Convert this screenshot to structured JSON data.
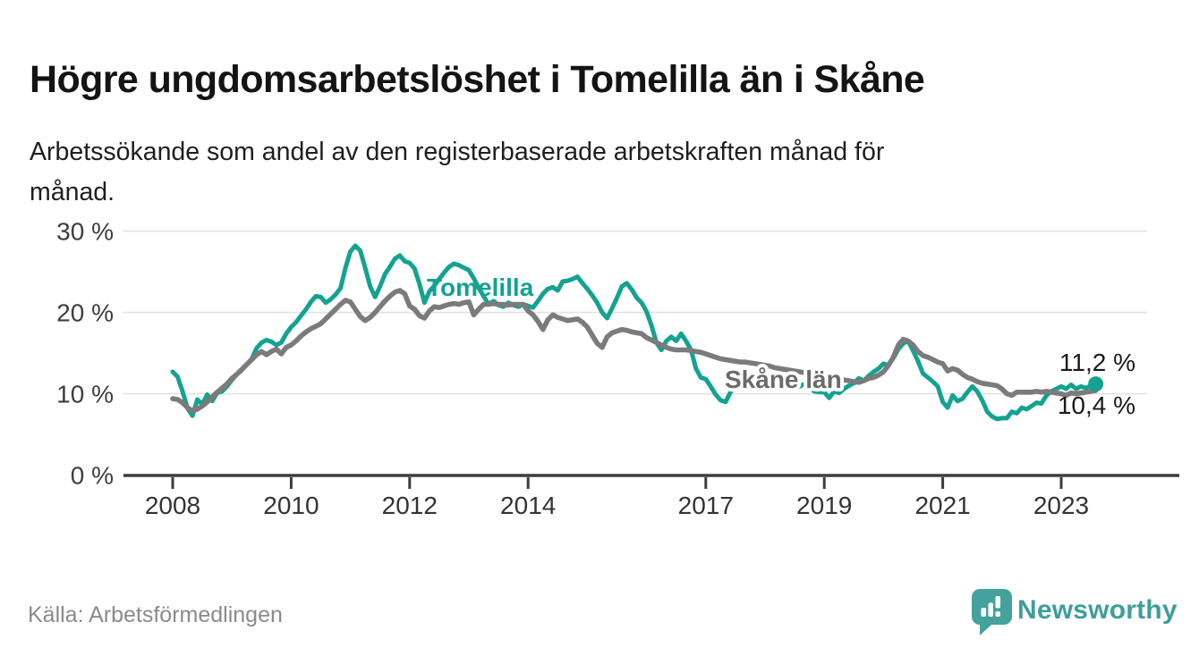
{
  "header": {
    "title": "Högre ungdomsarbetslöshet i Tomelilla än i Skåne",
    "subtitle": "Arbetssökande som andel av den registerbaserade arbetskraften månad för månad.",
    "subtitle_lines": [
      "Arbetssökande som andel av den registerbaserade arbetskraften månad för",
      "månad."
    ]
  },
  "footer": {
    "source": "Källa: Arbetsförmedlingen",
    "brand": "Newsworthy"
  },
  "colors": {
    "tomelilla": "#14a291",
    "skane": "#7b7b7b",
    "skane_label": "#6b6b6b",
    "grid": "#e2e2e2",
    "axis": "#3d3d3d",
    "end_label_text": "#1a1a1a",
    "brand_teal": "#3e9e9a"
  },
  "chart_data": {
    "type": "line",
    "unit": "%",
    "frequency": "monthly",
    "x_start": "2008-01",
    "x_end": "2023-08",
    "x_tick_years": [
      2008,
      2010,
      2012,
      2014,
      2017,
      2019,
      2021,
      2023
    ],
    "x_tick_labels": [
      "2008",
      "2010",
      "2012",
      "2014",
      "2017",
      "2019",
      "2021",
      "2023"
    ],
    "y_ticks": [
      0,
      10,
      20,
      30
    ],
    "y_tick_labels": [
      "0 %",
      "10 %",
      "20 %",
      "30 %"
    ],
    "ylim": [
      0,
      32
    ],
    "grid": true,
    "legend_position": "inline-labels",
    "series": [
      {
        "name": "Tomelilla",
        "color": "#14a291",
        "end_label": "11,2 %",
        "end_value": 11.2,
        "values": [
          12.7,
          12.1,
          10.3,
          8.2,
          7.3,
          9.3,
          8.7,
          9.9,
          9.1,
          10.1,
          10.3,
          10.9,
          11.7,
          12.4,
          12.9,
          13.6,
          14.3,
          15.6,
          16.3,
          16.6,
          16.4,
          16.0,
          16.3,
          17.4,
          18.2,
          18.8,
          19.6,
          20.4,
          21.3,
          22.0,
          21.9,
          21.2,
          21.6,
          22.2,
          23.0,
          25.5,
          27.5,
          28.2,
          27.6,
          25.5,
          23.2,
          21.9,
          23.2,
          24.7,
          25.6,
          26.6,
          27.0,
          26.3,
          26.1,
          25.4,
          23.5,
          21.2,
          22.6,
          23.3,
          24.1,
          24.9,
          25.6,
          26.0,
          25.8,
          25.5,
          25.2,
          24.2,
          23.0,
          22.0,
          21.0,
          21.4,
          20.9,
          20.7,
          21.2,
          20.9,
          20.7,
          21.0,
          20.8,
          20.6,
          21.4,
          22.3,
          22.9,
          23.1,
          22.7,
          23.8,
          23.9,
          24.1,
          24.4,
          23.6,
          22.9,
          22.1,
          21.2,
          20.0,
          19.3,
          20.5,
          21.8,
          23.2,
          23.6,
          22.8,
          21.8,
          21.2,
          20.1,
          18.4,
          16.3,
          15.4,
          16.5,
          17.0,
          16.5,
          17.4,
          16.5,
          15.4,
          13.1,
          12.0,
          11.8,
          10.9,
          9.9,
          9.2,
          9.0,
          10.2,
          11.1,
          10.7,
          11.3,
          11.6,
          11.4,
          11.1,
          11.3,
          11.0,
          10.8,
          11.0,
          11.4,
          11.1,
          10.7,
          10.9,
          11.2,
          10.8,
          10.3,
          10.2,
          10.2,
          9.5,
          10.3,
          10.1,
          10.6,
          11.0,
          11.3,
          11.9,
          11.6,
          12.2,
          12.7,
          13.1,
          13.7,
          13.5,
          14.4,
          15.5,
          16.2,
          16.5,
          15.3,
          14.0,
          12.5,
          12.0,
          11.5,
          10.9,
          9.0,
          8.3,
          9.8,
          9.1,
          9.4,
          10.2,
          10.9,
          10.3,
          9.2,
          7.8,
          7.2,
          6.9,
          7.0,
          7.0,
          7.8,
          7.6,
          8.3,
          8.1,
          8.5,
          8.9,
          8.8,
          9.8,
          10.3,
          10.6,
          10.9,
          10.6,
          11.1,
          10.6,
          10.9,
          10.7,
          11.0,
          11.2
        ]
      },
      {
        "name": "Skåne län",
        "color": "#7b7b7b",
        "end_label": "10,4 %",
        "end_value": 10.4,
        "values": [
          9.4,
          9.3,
          8.9,
          8.3,
          7.9,
          8.1,
          8.5,
          9.0,
          9.6,
          10.2,
          10.7,
          11.2,
          11.9,
          12.4,
          13.0,
          13.6,
          14.2,
          14.8,
          15.2,
          14.8,
          15.2,
          15.5,
          14.9,
          15.7,
          16.0,
          16.5,
          17.1,
          17.6,
          18.0,
          18.3,
          18.6,
          19.2,
          19.8,
          20.4,
          21.0,
          21.5,
          21.3,
          20.4,
          19.5,
          19.0,
          19.4,
          20.0,
          20.7,
          21.4,
          22.0,
          22.5,
          22.7,
          22.3,
          20.8,
          20.4,
          19.6,
          19.3,
          20.2,
          20.7,
          20.6,
          20.8,
          21.0,
          21.1,
          21.0,
          21.2,
          21.3,
          19.7,
          20.4,
          21.0,
          21.0,
          21.1,
          21.0,
          21.0,
          20.9,
          21.0,
          21.0,
          21.0,
          20.2,
          19.7,
          18.9,
          17.9,
          19.1,
          19.7,
          19.4,
          19.2,
          19.0,
          19.1,
          19.2,
          18.8,
          18.2,
          17.2,
          16.2,
          15.7,
          17.0,
          17.5,
          17.7,
          17.9,
          17.8,
          17.6,
          17.5,
          17.4,
          16.9,
          16.6,
          16.3,
          16.0,
          15.7,
          15.5,
          15.4,
          15.4,
          15.4,
          15.3,
          15.2,
          15.1,
          14.9,
          14.7,
          14.5,
          14.3,
          14.2,
          14.1,
          14.0,
          13.9,
          13.9,
          13.8,
          13.7,
          13.6,
          13.5,
          13.4,
          13.2,
          13.1,
          13.0,
          12.9,
          12.8,
          12.7,
          12.6,
          12.5,
          12.4,
          12.3,
          12.1,
          12.0,
          11.9,
          11.8,
          11.7,
          11.6,
          11.5,
          11.4,
          11.6,
          11.9,
          12.0,
          12.3,
          12.7,
          13.5,
          14.5,
          16.0,
          16.7,
          16.5,
          16.0,
          15.2,
          14.7,
          14.5,
          14.2,
          13.9,
          13.7,
          12.8,
          13.1,
          12.9,
          12.4,
          12.0,
          11.8,
          11.5,
          11.3,
          11.2,
          11.1,
          11.0,
          10.6,
          10.0,
          9.8,
          10.2,
          10.2,
          10.2,
          10.2,
          10.3,
          10.2,
          10.3,
          10.2,
          10.1,
          10.0,
          9.8,
          10.1,
          10.0,
          10.1,
          10.2,
          10.3,
          10.4
        ]
      }
    ]
  }
}
